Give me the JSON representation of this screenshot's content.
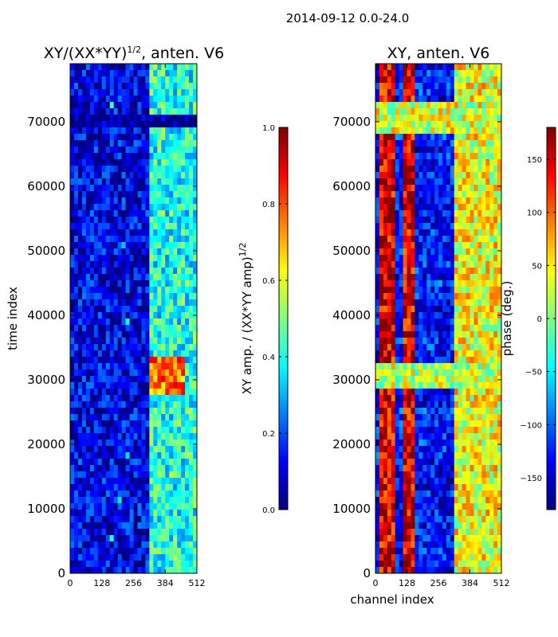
{
  "figure": {
    "suptitle": "2014-09-12 0.0-24.0"
  },
  "chart_data": [
    {
      "type": "heatmap",
      "title_main": "XY/(XX*YY)",
      "title_sup": "1/2",
      "title_suffix": ", anten. V6",
      "xlabel": "",
      "ylabel": "time index",
      "xlim": [
        0,
        512
      ],
      "ylim": [
        0,
        79000
      ],
      "xticks": [
        0,
        128,
        256,
        384,
        512
      ],
      "yticks": [
        0,
        10000,
        20000,
        30000,
        40000,
        50000,
        60000,
        70000
      ],
      "colormap": "jet",
      "colorbar": {
        "label_main": "XY amp. / (XX*YY amp)",
        "label_sup": "1/2",
        "range": [
          0.0,
          1.0
        ],
        "ticks": [
          "0.0",
          "0.2",
          "0.4",
          "0.6",
          "0.8",
          "1.0"
        ],
        "tick_values": [
          0.0,
          0.2,
          0.4,
          0.6,
          0.8,
          1.0
        ]
      },
      "features": [
        {
          "description": "mostly low amplitude (~0.1) across channels 0-320",
          "x": [
            0,
            320
          ],
          "y": [
            0,
            79000
          ],
          "value": 0.1
        },
        {
          "description": "higher amplitude band",
          "x": [
            325,
            512
          ],
          "y": [
            0,
            79000
          ],
          "value": 0.4
        },
        {
          "description": "high amplitude block",
          "x": [
            325,
            470
          ],
          "y": [
            28000,
            34000
          ],
          "value": 0.75
        },
        {
          "description": "dark horizontal band",
          "x": [
            0,
            512
          ],
          "y": [
            69500,
            71000
          ],
          "value": 0.0
        }
      ]
    },
    {
      "type": "heatmap",
      "title": "XY, anten. V6",
      "xlabel": "channel index",
      "ylabel": "",
      "xlim": [
        0,
        512
      ],
      "ylim": [
        0,
        79000
      ],
      "xticks": [
        0,
        128,
        256,
        384,
        512
      ],
      "yticks": [
        0,
        10000,
        20000,
        30000,
        40000,
        50000,
        60000,
        70000
      ],
      "colormap": "jet",
      "colorbar": {
        "label": "phase (deg.)",
        "range": [
          -180,
          180
        ],
        "ticks": [
          "−150",
          "−100",
          "−50",
          "0",
          "50",
          "100",
          "150"
        ],
        "tick_values": [
          -150,
          -100,
          -50,
          0,
          50,
          100,
          150
        ]
      },
      "features": [
        {
          "description": "high phase stripe",
          "x": [
            10,
            75
          ],
          "y": [
            0,
            79000
          ],
          "value": 150
        },
        {
          "description": "high phase stripe",
          "x": [
            115,
            160
          ],
          "y": [
            0,
            79000
          ],
          "value": 150
        },
        {
          "description": "mixed phase region",
          "x": [
            320,
            512
          ],
          "y": [
            0,
            79000
          ],
          "value": 40
        },
        {
          "description": "light green horizontal band",
          "x": [
            0,
            512
          ],
          "y": [
            68000,
            73000
          ],
          "value": 30
        },
        {
          "description": "light green horizontal band",
          "x": [
            0,
            512
          ],
          "y": [
            29000,
            33000
          ],
          "value": 20
        }
      ]
    }
  ]
}
